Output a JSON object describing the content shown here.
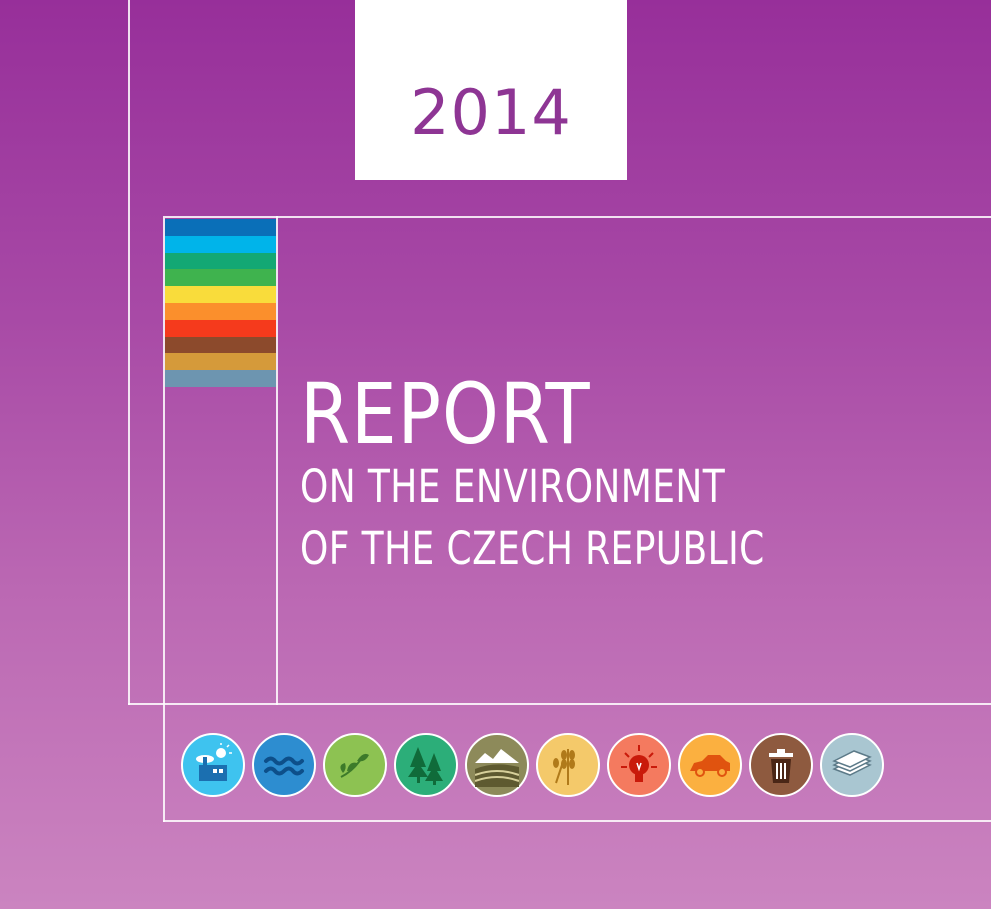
{
  "cover": {
    "year": "2014",
    "title": "REPORT",
    "subtitle_line1": "ON THE ENVIRONMENT",
    "subtitle_line2": "OF THE CZECH REPUBLIC"
  },
  "colors": {
    "background_top": "#972f9a",
    "background_bottom": "#cb84c0",
    "year_text": "#8e3594",
    "frame_lines": "#ffffff"
  },
  "stripes": [
    "#0a6fb8",
    "#00b4ea",
    "#13a874",
    "#3fb34e",
    "#f9dc3b",
    "#fb8f2c",
    "#f53a1c",
    "#8c4a2c",
    "#d59a3a",
    "#6d95b0"
  ],
  "topic_icons": [
    {
      "name": "air-icon",
      "color": "#3ec3ef"
    },
    {
      "name": "water-icon",
      "color": "#2d8dd0"
    },
    {
      "name": "nature-icon",
      "color": "#8dc252"
    },
    {
      "name": "forest-icon",
      "color": "#2cae79"
    },
    {
      "name": "landscape-icon",
      "color": "#8d8a5a"
    },
    {
      "name": "agriculture-icon",
      "color": "#f4c96a"
    },
    {
      "name": "energy-icon",
      "color": "#f47a5f"
    },
    {
      "name": "transport-icon",
      "color": "#fbb040"
    },
    {
      "name": "waste-icon",
      "color": "#8e5a3f"
    },
    {
      "name": "economy-icon",
      "color": "#a9c6d1"
    }
  ]
}
